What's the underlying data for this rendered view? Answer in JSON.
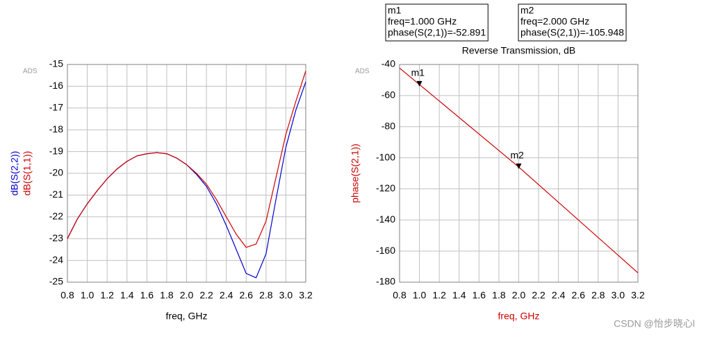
{
  "chart_data": [
    {
      "type": "line",
      "corner_label": "ADS",
      "xlabel": "freq, GHz",
      "x": [
        0.8,
        0.9,
        1.0,
        1.1,
        1.2,
        1.3,
        1.4,
        1.5,
        1.6,
        1.7,
        1.8,
        1.9,
        2.0,
        2.1,
        2.2,
        2.3,
        2.4,
        2.5,
        2.6,
        2.7,
        2.8,
        2.9,
        3.0,
        3.1,
        3.2
      ],
      "series": [
        {
          "name": "dB(S(2,2))",
          "color": "#0000cc",
          "values": [
            -23.0,
            -22.1,
            -21.4,
            -20.8,
            -20.25,
            -19.8,
            -19.45,
            -19.2,
            -19.1,
            -19.05,
            -19.1,
            -19.3,
            -19.6,
            -20.05,
            -20.6,
            -21.4,
            -22.4,
            -23.5,
            -24.6,
            -24.8,
            -23.7,
            -21.2,
            -18.8,
            -17.1,
            -15.8
          ]
        },
        {
          "name": "dB(S(1,1))",
          "color": "#cc0000",
          "values": [
            -23.0,
            -22.1,
            -21.4,
            -20.8,
            -20.25,
            -19.8,
            -19.45,
            -19.2,
            -19.1,
            -19.05,
            -19.1,
            -19.3,
            -19.6,
            -20.0,
            -20.5,
            -21.2,
            -22.0,
            -22.8,
            -23.4,
            -23.25,
            -22.2,
            -20.2,
            -18.2,
            -16.7,
            -15.3
          ]
        }
      ],
      "xlim": [
        0.8,
        3.2
      ],
      "ylim": [
        -25,
        -15
      ],
      "xticks": [
        0.8,
        {
          "value": 1,
          "label": "1.0"
        },
        1.2,
        1.4,
        1.6,
        1.8,
        {
          "value": 2,
          "label": "2.0"
        },
        2.2,
        2.4,
        2.6,
        2.8,
        {
          "value": 3,
          "label": "3.0"
        },
        3.2
      ],
      "yticks": [
        -25,
        -24,
        -23,
        -22,
        -21,
        -20,
        -19,
        -18,
        -17,
        -16,
        -15
      ],
      "grid": true
    },
    {
      "type": "line",
      "corner_label": "ADS",
      "title": "Reverse Transmission, dB",
      "xlabel": "freq, GHz",
      "ylabel": "phase(S(2,1))",
      "label_color": "#cc0000",
      "x": [
        0.8,
        1.0,
        2.0,
        3.2
      ],
      "series": [
        {
          "color": "#cc0000",
          "values": [
            -42.3,
            -52.891,
            -105.948,
            -174
          ]
        }
      ],
      "markers": [
        {
          "name": "m1",
          "x": 1.0,
          "y": -52.891,
          "lines": [
            "freq=1.000 GHz",
            "phase(S(2,1))=-52.891"
          ]
        },
        {
          "name": "m2",
          "x": 2.0,
          "y": -105.948,
          "lines": [
            "freq=2.000 GHz",
            "phase(S(2,1))=-105.948"
          ]
        }
      ],
      "xlim": [
        0.8,
        3.2
      ],
      "ylim": [
        -180,
        -40
      ],
      "xticks": [
        0.8,
        {
          "value": 1,
          "label": "1.0"
        },
        1.2,
        1.4,
        1.6,
        1.8,
        {
          "value": 2,
          "label": "2.0"
        },
        2.2,
        2.4,
        2.6,
        2.8,
        {
          "value": 3,
          "label": "3.0"
        },
        3.2
      ],
      "yticks": [
        -180,
        -160,
        -140,
        -120,
        -100,
        -80,
        -60,
        -40
      ],
      "grid": true
    }
  ],
  "watermark": "CSDN @怡步晓心l"
}
